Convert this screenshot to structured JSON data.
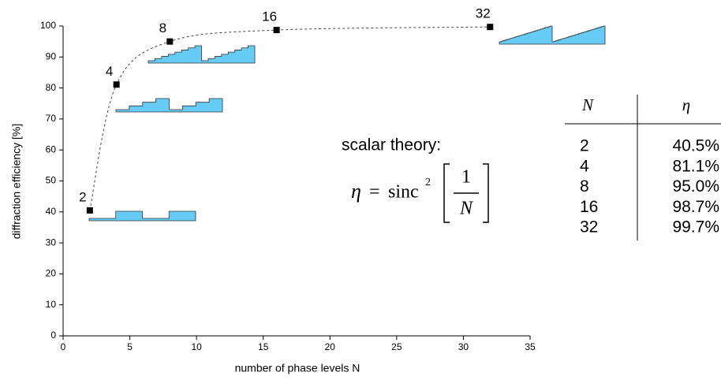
{
  "chart_data": {
    "type": "scatter",
    "x_label": "number of phase levels N",
    "y_label": "diffraction efficiency [%]",
    "x": [
      2,
      4,
      8,
      16,
      32
    ],
    "values": [
      40.5,
      81.1,
      95.0,
      98.7,
      99.7
    ],
    "value_labels": [
      "40.5%",
      "81.1%",
      "95.0%",
      "98.7%",
      "99.7%"
    ],
    "color": "#000000",
    "line_style": "dashed",
    "xlim": [
      0,
      35
    ],
    "xticks": [
      0,
      5,
      10,
      15,
      20,
      25,
      30,
      35
    ],
    "ylim": [
      0,
      100
    ],
    "yticks": [
      0,
      10,
      20,
      30,
      40,
      50,
      60,
      70,
      80,
      90,
      100
    ],
    "annotation": "scalar theory:",
    "formula": {
      "lhs": "η",
      "op": "=",
      "fn": "sinc",
      "exp": "2",
      "num": "1",
      "den": "N"
    },
    "table": {
      "header": [
        "N",
        "η"
      ]
    }
  }
}
